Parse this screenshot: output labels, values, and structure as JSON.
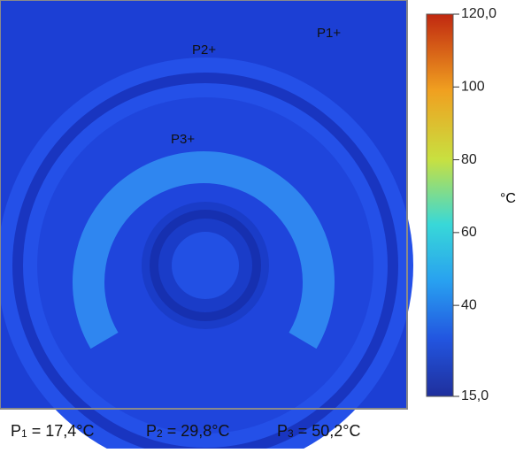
{
  "image": {
    "points": [
      {
        "marker": "P1+",
        "name": "P",
        "sub": "1",
        "reading": "= 17,4°C"
      },
      {
        "marker": "P2+",
        "name": "P",
        "sub": "2",
        "reading": "= 29,8°C"
      },
      {
        "marker": "P3+",
        "name": "P",
        "sub": "3",
        "reading": "= 50,2°C"
      }
    ]
  },
  "colorbar": {
    "unit": "°C",
    "ticks": [
      {
        "value": 120,
        "label": "120,0"
      },
      100,
      80,
      60,
      40,
      {
        "value": 15,
        "label": "15,0"
      }
    ]
  }
}
